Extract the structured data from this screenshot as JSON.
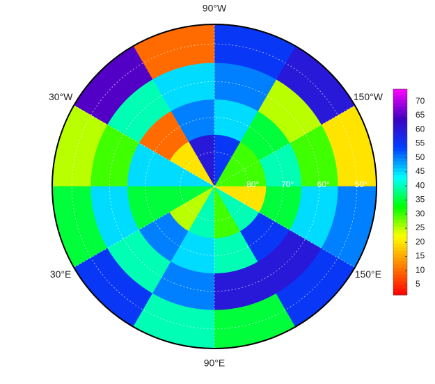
{
  "chart_data": {
    "type": "polar_heatmap",
    "lat_min": 45,
    "lat_edges": [
      45,
      55,
      65,
      75,
      90
    ],
    "lon_edges": [
      -180,
      -150,
      -120,
      -90,
      -60,
      -30,
      0,
      30,
      60,
      90,
      120,
      150,
      180
    ],
    "values": [
      [
        20,
        60,
        55,
        10,
        65,
        25,
        35,
        55,
        40,
        35,
        55,
        50
      ],
      [
        30,
        25,
        50,
        45,
        40,
        30,
        45,
        40,
        50,
        60,
        60,
        45
      ],
      [
        40,
        35,
        45,
        50,
        10,
        45,
        35,
        50,
        45,
        40,
        55,
        35
      ],
      [
        30,
        30,
        55,
        60,
        20,
        45,
        35,
        25,
        40,
        30,
        40,
        20
      ]
    ],
    "colormap": [
      "#ff0000",
      "#ff8000",
      "#ffff00",
      "#00ff00",
      "#00ffff",
      "#0040ff",
      "#4000c0",
      "#ff00ff"
    ],
    "clim": [
      1.3,
      74.4
    ],
    "cticks": [
      5,
      10,
      15,
      20,
      25,
      30,
      35,
      40,
      45,
      50,
      55,
      60,
      65,
      70
    ],
    "lon_labels": [
      {
        "value": -90,
        "label": "90°W"
      },
      {
        "value": -30,
        "label": "30°W"
      },
      {
        "value": -150,
        "label": "150°W"
      },
      {
        "value": 30,
        "label": "30°E"
      },
      {
        "value": 150,
        "label": "150°E"
      },
      {
        "value": 90,
        "label": "90°E"
      }
    ],
    "lat_labels": [
      {
        "value": 80,
        "label": "80°"
      },
      {
        "value": 70,
        "label": "70°"
      },
      {
        "value": 60,
        "label": "60°"
      },
      {
        "value": 50,
        "label": "50°"
      }
    ]
  }
}
